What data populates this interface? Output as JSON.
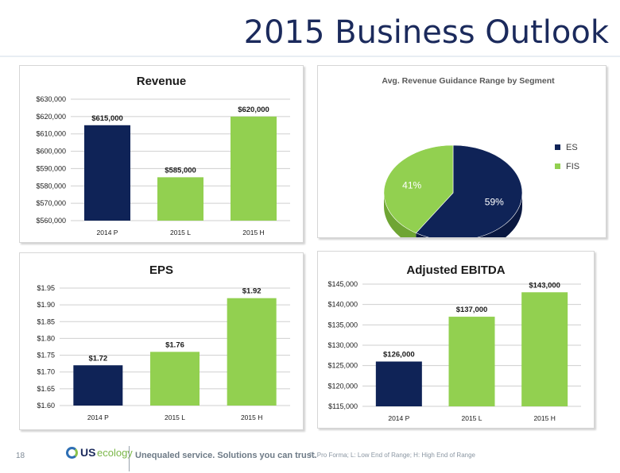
{
  "header": {
    "title": "2015 Business Outlook"
  },
  "footer": {
    "page_number": "18",
    "logo_us": "US",
    "logo_ecology": "ecology",
    "tagline": "Unequaled service. Solutions you can trust.",
    "footnote": "P: Pro Forma; L: Low End of Range; H: High End of Range"
  },
  "colors": {
    "navy": "#0f2357",
    "green": "#92d050",
    "title": "#1b2a5c"
  },
  "chart_data": [
    {
      "id": "revenue",
      "type": "bar",
      "title": "Revenue",
      "categories": [
        "2014 P",
        "2015 L",
        "2015 H"
      ],
      "values": [
        615000,
        585000,
        620000
      ],
      "value_labels": [
        "$615,000",
        "$585,000",
        "$620,000"
      ],
      "colors": [
        "#0f2357",
        "#92d050",
        "#92d050"
      ],
      "ylim": [
        560000,
        630000
      ],
      "yticks": [
        560000,
        570000,
        580000,
        590000,
        600000,
        610000,
        620000,
        630000
      ],
      "ytick_labels": [
        "$560,000",
        "$570,000",
        "$580,000",
        "$590,000",
        "$600,000",
        "$610,000",
        "$620,000",
        "$630,000"
      ],
      "grid": true
    },
    {
      "id": "segment",
      "type": "pie",
      "title": "Avg. Revenue Guidance Range by Segment",
      "labels": [
        "ES",
        "FIS"
      ],
      "values": [
        59,
        41
      ],
      "value_labels": [
        "59%",
        "41%"
      ],
      "colors": [
        "#0f2357",
        "#92d050"
      ],
      "legend": "right"
    },
    {
      "id": "eps",
      "type": "bar",
      "title": "EPS",
      "categories": [
        "2014 P",
        "2015 L",
        "2015 H"
      ],
      "values": [
        1.72,
        1.76,
        1.92
      ],
      "value_labels": [
        "$1.72",
        "$1.76",
        "$1.92"
      ],
      "colors": [
        "#0f2357",
        "#92d050",
        "#92d050"
      ],
      "ylim": [
        1.6,
        1.95
      ],
      "yticks": [
        1.6,
        1.65,
        1.7,
        1.75,
        1.8,
        1.85,
        1.9,
        1.95
      ],
      "ytick_labels": [
        "$1.60",
        "$1.65",
        "$1.70",
        "$1.75",
        "$1.80",
        "$1.85",
        "$1.90",
        "$1.95"
      ],
      "grid": true
    },
    {
      "id": "ebitda",
      "type": "bar",
      "title": "Adjusted EBITDA",
      "categories": [
        "2014 P",
        "2015 L",
        "2015 H"
      ],
      "values": [
        126000,
        137000,
        143000
      ],
      "value_labels": [
        "$126,000",
        "$137,000",
        "$143,000"
      ],
      "colors": [
        "#0f2357",
        "#92d050",
        "#92d050"
      ],
      "ylim": [
        115000,
        145000
      ],
      "yticks": [
        115000,
        120000,
        125000,
        130000,
        135000,
        140000,
        145000
      ],
      "ytick_labels": [
        "$115,000",
        "$120,000",
        "$125,000",
        "$130,000",
        "$135,000",
        "$140,000",
        "$145,000"
      ],
      "grid": true
    }
  ]
}
